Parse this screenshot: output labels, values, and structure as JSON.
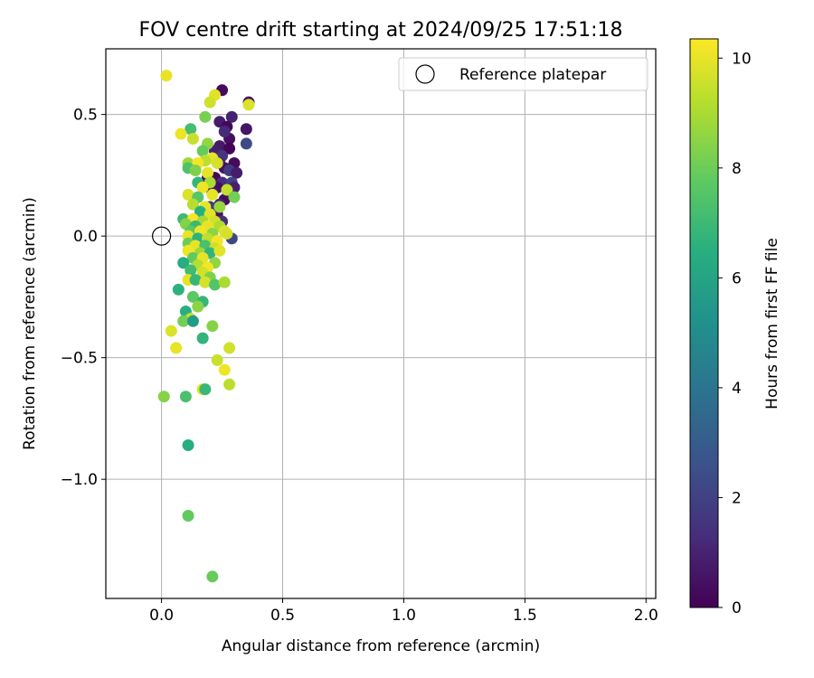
{
  "chart_data": {
    "type": "scatter",
    "title": "FOV centre drift starting at 2024/09/25 17:51:18",
    "xlabel": "Angular distance from reference (arcmin)",
    "ylabel": "Rotation from reference (arcmin)",
    "xlim": [
      -0.23,
      2.04
    ],
    "ylim": [
      -1.49,
      0.77
    ],
    "xticks": [
      0.0,
      0.5,
      1.0,
      1.5,
      2.0
    ],
    "xtick_labels": [
      "0.0",
      "0.5",
      "1.0",
      "1.5",
      "2.0"
    ],
    "yticks": [
      0.5,
      0.0,
      -0.5,
      -1.0
    ],
    "ytick_labels": [
      "0.5",
      "0.0",
      "−0.5",
      "−1.0"
    ],
    "grid": true,
    "legend": {
      "location": "top-right",
      "label": "Reference platepar"
    },
    "reference_point": {
      "x": 0.0,
      "y": 0.0
    },
    "colorbar": {
      "label": "Hours from first FF file",
      "range": [
        0,
        10.35
      ],
      "ticks": [
        0,
        2,
        4,
        6,
        8,
        10
      ],
      "tick_labels": [
        "0",
        "2",
        "4",
        "6",
        "8",
        "10"
      ],
      "colormap": "viridis"
    },
    "points": [
      {
        "x": 0.25,
        "y": 0.6,
        "c": 0.3
      },
      {
        "x": 0.36,
        "y": 0.55,
        "c": 0.5
      },
      {
        "x": 0.29,
        "y": 0.49,
        "c": 1.0
      },
      {
        "x": 0.24,
        "y": 0.47,
        "c": 0.8
      },
      {
        "x": 0.35,
        "y": 0.44,
        "c": 0.6
      },
      {
        "x": 0.27,
        "y": 0.45,
        "c": 0.2
      },
      {
        "x": 0.28,
        "y": 0.4,
        "c": 0.4
      },
      {
        "x": 0.26,
        "y": 0.43,
        "c": 1.2
      },
      {
        "x": 0.24,
        "y": 0.37,
        "c": 0.7
      },
      {
        "x": 0.28,
        "y": 0.36,
        "c": 0.1
      },
      {
        "x": 0.35,
        "y": 0.38,
        "c": 2.3
      },
      {
        "x": 0.22,
        "y": 0.35,
        "c": 0.9
      },
      {
        "x": 0.25,
        "y": 0.33,
        "c": 1.6
      },
      {
        "x": 0.3,
        "y": 0.3,
        "c": 0.3
      },
      {
        "x": 0.24,
        "y": 0.3,
        "c": 1.1
      },
      {
        "x": 0.26,
        "y": 0.28,
        "c": 0.5
      },
      {
        "x": 0.28,
        "y": 0.27,
        "c": 1.8
      },
      {
        "x": 0.31,
        "y": 0.26,
        "c": 0.8
      },
      {
        "x": 0.22,
        "y": 0.24,
        "c": 0.2
      },
      {
        "x": 0.19,
        "y": 0.24,
        "c": 0.6
      },
      {
        "x": 0.25,
        "y": 0.22,
        "c": 1.3
      },
      {
        "x": 0.29,
        "y": 0.22,
        "c": 2.0
      },
      {
        "x": 0.23,
        "y": 0.2,
        "c": 0.4
      },
      {
        "x": 0.27,
        "y": 0.19,
        "c": 1.5
      },
      {
        "x": 0.3,
        "y": 0.2,
        "c": 0.9
      },
      {
        "x": 0.21,
        "y": 0.18,
        "c": 0.7
      },
      {
        "x": 0.26,
        "y": 0.15,
        "c": 0.3
      },
      {
        "x": 0.24,
        "y": 0.13,
        "c": 1.0
      },
      {
        "x": 0.2,
        "y": 0.12,
        "c": 1.9
      },
      {
        "x": 0.23,
        "y": 0.09,
        "c": 0.5
      },
      {
        "x": 0.25,
        "y": 0.06,
        "c": 1.4
      },
      {
        "x": 0.29,
        "y": -0.01,
        "c": 2.2
      },
      {
        "x": 0.18,
        "y": 0.49,
        "c": 8.2
      },
      {
        "x": 0.22,
        "y": 0.58,
        "c": 9.9
      },
      {
        "x": 0.2,
        "y": 0.55,
        "c": 9.6
      },
      {
        "x": 0.36,
        "y": 0.54,
        "c": 9.8
      },
      {
        "x": 0.02,
        "y": 0.66,
        "c": 10.0
      },
      {
        "x": 0.12,
        "y": 0.44,
        "c": 7.2
      },
      {
        "x": 0.08,
        "y": 0.42,
        "c": 10.1
      },
      {
        "x": 0.13,
        "y": 0.4,
        "c": 9.5
      },
      {
        "x": 0.19,
        "y": 0.38,
        "c": 8.6
      },
      {
        "x": 0.17,
        "y": 0.35,
        "c": 7.9
      },
      {
        "x": 0.21,
        "y": 0.32,
        "c": 10.0
      },
      {
        "x": 0.18,
        "y": 0.31,
        "c": 9.3
      },
      {
        "x": 0.11,
        "y": 0.3,
        "c": 8.8
      },
      {
        "x": 0.15,
        "y": 0.3,
        "c": 10.2
      },
      {
        "x": 0.23,
        "y": 0.3,
        "c": 9.7
      },
      {
        "x": 0.11,
        "y": 0.28,
        "c": 7.4
      },
      {
        "x": 0.14,
        "y": 0.27,
        "c": 8.3
      },
      {
        "x": 0.19,
        "y": 0.26,
        "c": 10.0
      },
      {
        "x": 0.15,
        "y": 0.22,
        "c": 6.8
      },
      {
        "x": 0.2,
        "y": 0.22,
        "c": 9.0
      },
      {
        "x": 0.17,
        "y": 0.2,
        "c": 10.1
      },
      {
        "x": 0.27,
        "y": 0.19,
        "c": 9.4
      },
      {
        "x": 0.11,
        "y": 0.17,
        "c": 9.8
      },
      {
        "x": 0.15,
        "y": 0.16,
        "c": 7.6
      },
      {
        "x": 0.21,
        "y": 0.17,
        "c": 10.0
      },
      {
        "x": 0.3,
        "y": 0.16,
        "c": 8.1
      },
      {
        "x": 0.13,
        "y": 0.13,
        "c": 9.2
      },
      {
        "x": 0.18,
        "y": 0.12,
        "c": 10.0
      },
      {
        "x": 0.24,
        "y": 0.12,
        "c": 8.7
      },
      {
        "x": 0.16,
        "y": 0.1,
        "c": 6.5
      },
      {
        "x": 0.2,
        "y": 0.09,
        "c": 9.9
      },
      {
        "x": 0.09,
        "y": 0.07,
        "c": 7.0
      },
      {
        "x": 0.13,
        "y": 0.07,
        "c": 10.2
      },
      {
        "x": 0.17,
        "y": 0.06,
        "c": 8.9
      },
      {
        "x": 0.22,
        "y": 0.06,
        "c": 9.6
      },
      {
        "x": 0.1,
        "y": 0.05,
        "c": 8.4
      },
      {
        "x": 0.14,
        "y": 0.04,
        "c": 6.9
      },
      {
        "x": 0.19,
        "y": 0.04,
        "c": 10.0
      },
      {
        "x": 0.24,
        "y": 0.04,
        "c": 9.1
      },
      {
        "x": 0.12,
        "y": 0.02,
        "c": 7.7
      },
      {
        "x": 0.16,
        "y": 0.02,
        "c": 10.1
      },
      {
        "x": 0.21,
        "y": 0.01,
        "c": 8.5
      },
      {
        "x": 0.26,
        "y": 0.02,
        "c": 9.8
      },
      {
        "x": 0.11,
        "y": 0.0,
        "c": 10.0
      },
      {
        "x": 0.15,
        "y": -0.01,
        "c": 6.6
      },
      {
        "x": 0.19,
        "y": -0.01,
        "c": 9.3
      },
      {
        "x": 0.23,
        "y": -0.02,
        "c": 10.2
      },
      {
        "x": 0.27,
        "y": 0.01,
        "c": 9.7
      },
      {
        "x": 0.11,
        "y": -0.03,
        "c": 8.0
      },
      {
        "x": 0.14,
        "y": -0.04,
        "c": 10.0
      },
      {
        "x": 0.18,
        "y": -0.04,
        "c": 7.3
      },
      {
        "x": 0.22,
        "y": -0.05,
        "c": 9.5
      },
      {
        "x": 0.11,
        "y": -0.06,
        "c": 10.1
      },
      {
        "x": 0.16,
        "y": -0.07,
        "c": 8.8
      },
      {
        "x": 0.2,
        "y": -0.07,
        "c": 6.7
      },
      {
        "x": 0.24,
        "y": -0.06,
        "c": 9.9
      },
      {
        "x": 0.13,
        "y": -0.09,
        "c": 7.8
      },
      {
        "x": 0.17,
        "y": -0.09,
        "c": 10.0
      },
      {
        "x": 0.09,
        "y": -0.11,
        "c": 6.4
      },
      {
        "x": 0.22,
        "y": -0.11,
        "c": 8.6
      },
      {
        "x": 0.15,
        "y": -0.12,
        "c": 9.2
      },
      {
        "x": 0.19,
        "y": -0.13,
        "c": 10.2
      },
      {
        "x": 0.12,
        "y": -0.14,
        "c": 7.1
      },
      {
        "x": 0.17,
        "y": -0.15,
        "c": 9.6
      },
      {
        "x": 0.2,
        "y": -0.17,
        "c": 8.3
      },
      {
        "x": 0.11,
        "y": -0.18,
        "c": 10.0
      },
      {
        "x": 0.14,
        "y": -0.18,
        "c": 6.9
      },
      {
        "x": 0.18,
        "y": -0.19,
        "c": 9.7
      },
      {
        "x": 0.22,
        "y": -0.2,
        "c": 7.5
      },
      {
        "x": 0.26,
        "y": -0.19,
        "c": 9.0
      },
      {
        "x": 0.07,
        "y": -0.22,
        "c": 6.6
      },
      {
        "x": 0.13,
        "y": -0.25,
        "c": 7.7
      },
      {
        "x": 0.17,
        "y": -0.27,
        "c": 6.8
      },
      {
        "x": 0.15,
        "y": -0.29,
        "c": 8.5
      },
      {
        "x": 0.1,
        "y": -0.31,
        "c": 6.5
      },
      {
        "x": 0.12,
        "y": -0.34,
        "c": 9.4
      },
      {
        "x": 0.09,
        "y": -0.35,
        "c": 8.1
      },
      {
        "x": 0.13,
        "y": -0.35,
        "c": 5.6
      },
      {
        "x": 0.21,
        "y": -0.37,
        "c": 8.4
      },
      {
        "x": 0.04,
        "y": -0.39,
        "c": 9.8
      },
      {
        "x": 0.17,
        "y": -0.42,
        "c": 6.7
      },
      {
        "x": 0.28,
        "y": -0.46,
        "c": 9.6
      },
      {
        "x": 0.06,
        "y": -0.46,
        "c": 10.0
      },
      {
        "x": 0.23,
        "y": -0.51,
        "c": 9.5
      },
      {
        "x": 0.26,
        "y": -0.55,
        "c": 10.1
      },
      {
        "x": 0.28,
        "y": -0.61,
        "c": 9.3
      },
      {
        "x": 0.17,
        "y": -0.63,
        "c": 9.9
      },
      {
        "x": 0.18,
        "y": -0.63,
        "c": 6.9
      },
      {
        "x": 0.01,
        "y": -0.66,
        "c": 8.4
      },
      {
        "x": 0.1,
        "y": -0.66,
        "c": 7.3
      },
      {
        "x": 0.11,
        "y": -0.86,
        "c": 6.4
      },
      {
        "x": 0.11,
        "y": -1.15,
        "c": 7.8
      },
      {
        "x": 0.21,
        "y": -1.4,
        "c": 7.9
      }
    ]
  }
}
